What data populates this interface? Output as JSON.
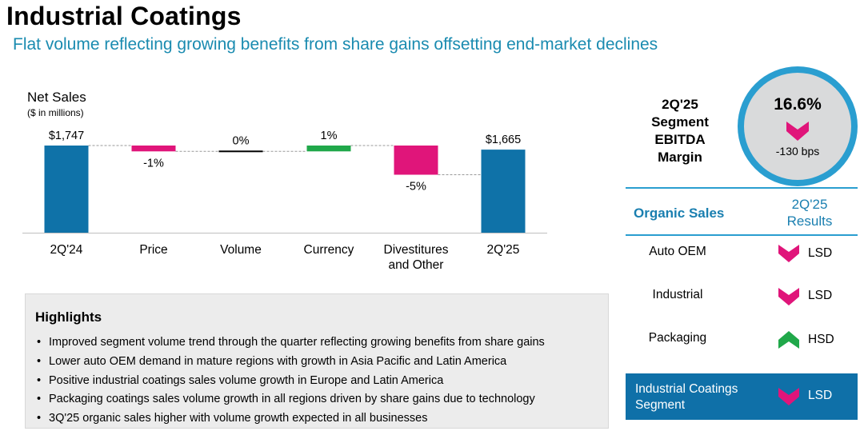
{
  "header": {
    "title": "Industrial Coatings",
    "subtitle": "Flat volume reflecting growing benefits from share gains offsetting end-market declines"
  },
  "chart_data": {
    "type": "bar",
    "subtype": "waterfall",
    "title": "Net Sales",
    "subtitle": "($ in millions)",
    "categories": [
      "2Q'24",
      "Price",
      "Volume",
      "Currency",
      "Divestitures and Other",
      "2Q'25"
    ],
    "category_lines": [
      [
        "2Q'24"
      ],
      [
        "Price"
      ],
      [
        "Volume"
      ],
      [
        "Currency"
      ],
      [
        "Divestitures",
        "and Other"
      ],
      [
        "2Q'25"
      ]
    ],
    "values": [
      1747,
      -1,
      0,
      1,
      -5,
      1665
    ],
    "value_units": [
      "$M",
      "%",
      "%",
      "%",
      "%",
      "$M"
    ],
    "bar_kinds": [
      "total",
      "delta",
      "delta",
      "delta",
      "delta",
      "total"
    ],
    "labels": [
      "$1,747",
      "-1%",
      "0%",
      "1%",
      "-5%",
      "$1,665"
    ],
    "colors": {
      "total": "#0f72a8",
      "decrease": "#e0157a",
      "increase": "#20a84a",
      "neutral": "#000000",
      "connector": "#999999",
      "axis": "#bfbfbf"
    }
  },
  "ebitda": {
    "label_lines": [
      "2Q'25",
      "Segment",
      "EBITDA",
      "Margin"
    ],
    "value": "16.6%",
    "direction": "down",
    "change": "-130 bps",
    "ring_color": "#2a9ed0",
    "arrow_color": "#e0157a"
  },
  "highlights": {
    "heading": "Highlights",
    "items": [
      "Improved segment volume trend through the quarter reflecting growing benefits from share gains",
      "Lower auto OEM demand in mature regions with growth in Asia Pacific and Latin America",
      "Positive industrial coatings sales volume growth in Europe and Latin America",
      "Packaging coatings sales volume growth in all regions driven by share gains due to technology",
      "3Q'25 organic sales higher with volume growth expected in all businesses"
    ]
  },
  "organic_sales": {
    "header_left": "Organic Sales",
    "header_right_lines": [
      "2Q'25",
      "Results"
    ],
    "rows": [
      {
        "label": "Auto OEM",
        "direction": "down",
        "result": "LSD"
      },
      {
        "label": "Industrial",
        "direction": "down",
        "result": "LSD"
      },
      {
        "label": "Packaging",
        "direction": "up",
        "result": "HSD"
      }
    ],
    "total": {
      "label_lines": [
        "Industrial Coatings",
        "Segment"
      ],
      "direction": "down",
      "result": "LSD"
    },
    "colors": {
      "down": "#e0157a",
      "up": "#20a84a",
      "total_bg": "#0f70a8",
      "line": "#2a9ed0"
    }
  }
}
